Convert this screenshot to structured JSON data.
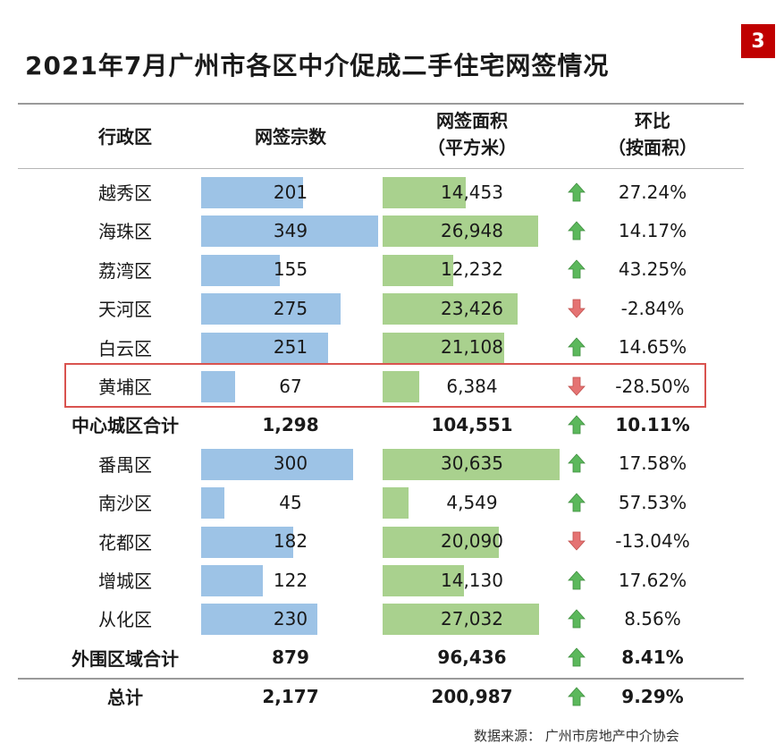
{
  "page_badge": "3",
  "title": "2021年7月广州市各区中介促成二手住宅网签情况",
  "source": "数据来源：  广州市房地产中介协会",
  "chart_data": {
    "type": "table",
    "title": "2021年7月广州市各区中介促成二手住宅网签情况",
    "columns": [
      "行政区",
      "网签宗数",
      "网签面积（平方米）",
      "环比（按面积）"
    ],
    "header": {
      "district": "行政区",
      "count": "网签宗数",
      "area_l1": "网签面积",
      "area_l2": "（平方米）",
      "ratio_l1": "环比",
      "ratio_l2": "（按面积）"
    },
    "bar_max": {
      "count": 349,
      "area": 30635
    },
    "rows": [
      {
        "name": "越秀区",
        "count": 201,
        "count_text": "201",
        "area": 14453,
        "area_text": "14,453",
        "trend": "up",
        "ratio": "27.24%",
        "bar": true
      },
      {
        "name": "海珠区",
        "count": 349,
        "count_text": "349",
        "area": 26948,
        "area_text": "26,948",
        "trend": "up",
        "ratio": "14.17%",
        "bar": true
      },
      {
        "name": "荔湾区",
        "count": 155,
        "count_text": "155",
        "area": 12232,
        "area_text": "12,232",
        "trend": "up",
        "ratio": "43.25%",
        "bar": true
      },
      {
        "name": "天河区",
        "count": 275,
        "count_text": "275",
        "area": 23426,
        "area_text": "23,426",
        "trend": "down",
        "ratio": "-2.84%",
        "bar": true
      },
      {
        "name": "白云区",
        "count": 251,
        "count_text": "251",
        "area": 21108,
        "area_text": "21,108",
        "trend": "up",
        "ratio": "14.65%",
        "bar": true
      },
      {
        "name": "黄埔区",
        "count": 67,
        "count_text": "67",
        "area": 6384,
        "area_text": "6,384",
        "trend": "down",
        "ratio": "-28.50%",
        "bar": true,
        "highlight": true
      },
      {
        "name": "中心城区合计",
        "count": 1298,
        "count_text": "1,298",
        "area": 104551,
        "area_text": "104,551",
        "trend": "up",
        "ratio": "10.11%",
        "bar": false,
        "bold": true
      },
      {
        "name": "番禺区",
        "count": 300,
        "count_text": "300",
        "area": 30635,
        "area_text": "30,635",
        "trend": "up",
        "ratio": "17.58%",
        "bar": true
      },
      {
        "name": "南沙区",
        "count": 45,
        "count_text": "45",
        "area": 4549,
        "area_text": "4,549",
        "trend": "up",
        "ratio": "57.53%",
        "bar": true
      },
      {
        "name": "花都区",
        "count": 182,
        "count_text": "182",
        "area": 20090,
        "area_text": "20,090",
        "trend": "down",
        "ratio": "-13.04%",
        "bar": true
      },
      {
        "name": "增城区",
        "count": 122,
        "count_text": "122",
        "area": 14130,
        "area_text": "14,130",
        "trend": "up",
        "ratio": "17.62%",
        "bar": true
      },
      {
        "name": "从化区",
        "count": 230,
        "count_text": "230",
        "area": 27032,
        "area_text": "27,032",
        "trend": "up",
        "ratio": "8.56%",
        "bar": true
      },
      {
        "name": "外围区域合计",
        "count": 879,
        "count_text": "879",
        "area": 96436,
        "area_text": "96,436",
        "trend": "up",
        "ratio": "8.41%",
        "bar": false,
        "bold": true
      },
      {
        "name": "总计",
        "count": 2177,
        "count_text": "2,177",
        "area": 200987,
        "area_text": "200,987",
        "trend": "up",
        "ratio": "9.29%",
        "bar": false,
        "bold": true
      }
    ]
  },
  "colors": {
    "count_bar": "#9dc3e6",
    "area_bar": "#a9d18e",
    "arrow_up": "#5cb85c",
    "arrow_down": "#e57373",
    "highlight_border": "#d9534f",
    "badge": "#c00000"
  }
}
